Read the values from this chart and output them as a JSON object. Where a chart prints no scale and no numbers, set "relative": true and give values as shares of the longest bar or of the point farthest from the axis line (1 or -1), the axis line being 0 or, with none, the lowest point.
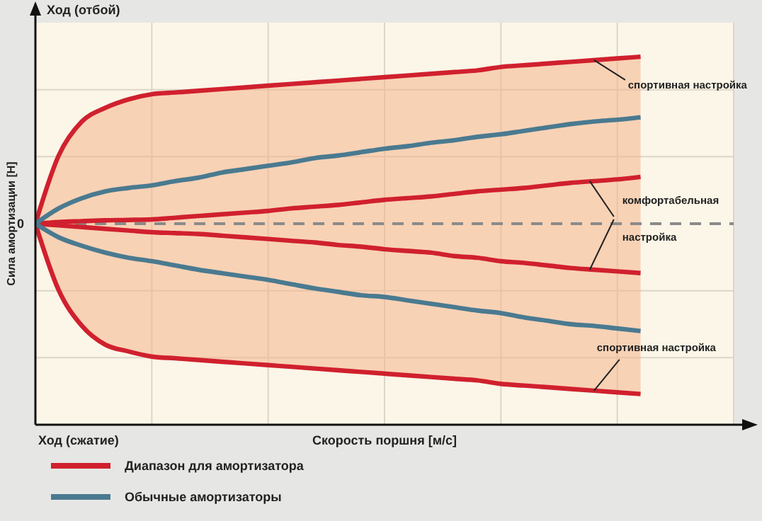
{
  "chart_data": {
    "type": "line",
    "relative": true,
    "ylabel": "Сила амортизации [Н]",
    "xlabel": "Скорость поршня [м/с]",
    "categories": [
      null,
      null,
      null,
      null,
      null,
      null,
      null,
      null,
      null,
      null,
      null,
      null,
      null,
      null,
      null,
      null,
      null,
      null,
      null,
      null,
      null,
      null,
      null,
      null,
      null,
      null,
      null
    ],
    "series": [
      {
        "name": "Диапазон для амортизатора",
        "color": "#d0202e",
        "values": [
          0,
          0.4,
          0.6,
          0.68,
          0.73,
          0.76,
          0.77,
          0.78,
          0.79,
          0.8,
          0.81,
          0.82,
          0.83,
          0.84,
          0.85,
          0.86,
          0.87,
          0.88,
          0.89,
          0.9,
          0.92,
          0.93,
          0.94,
          0.95,
          0.96,
          0.97,
          0.98
        ],
        "lower": [
          0,
          -0.39,
          -0.6,
          -0.71,
          -0.75,
          -0.78,
          -0.79,
          -0.8,
          -0.81,
          -0.82,
          -0.83,
          -0.84,
          -0.85,
          -0.86,
          -0.87,
          -0.88,
          -0.89,
          -0.9,
          -0.91,
          -0.92,
          -0.94,
          -0.95,
          -0.96,
          -0.97,
          -0.98,
          -0.99,
          -1.0
        ],
        "upper": [
          0,
          0.4,
          0.6,
          0.68,
          0.73,
          0.76,
          0.77,
          0.78,
          0.79,
          0.8,
          0.81,
          0.82,
          0.83,
          0.84,
          0.85,
          0.86,
          0.87,
          0.88,
          0.89,
          0.9,
          0.92,
          0.93,
          0.94,
          0.95,
          0.96,
          0.97,
          0.98
        ]
      },
      {
        "color": "#d0202e",
        "values": [
          0,
          0.01,
          0.015,
          0.02,
          0.022,
          0.025,
          0.035,
          0.045,
          0.055,
          0.065,
          0.075,
          0.09,
          0.1,
          0.11,
          0.125,
          0.14,
          0.15,
          0.16,
          0.175,
          0.19,
          0.2,
          0.21,
          0.225,
          0.24,
          0.25,
          0.26,
          0.275
        ]
      },
      {
        "color": "#d0202e",
        "values": [
          0,
          -0.01,
          -0.02,
          -0.03,
          -0.04,
          -0.05,
          -0.055,
          -0.06,
          -0.07,
          -0.08,
          -0.09,
          -0.1,
          -0.11,
          -0.125,
          -0.135,
          -0.15,
          -0.16,
          -0.17,
          -0.19,
          -0.2,
          -0.22,
          -0.23,
          -0.245,
          -0.26,
          -0.27,
          -0.28,
          -0.29
        ]
      },
      {
        "color": "#d0202e",
        "values": [
          0,
          -0.39,
          -0.6,
          -0.71,
          -0.75,
          -0.78,
          -0.79,
          -0.8,
          -0.81,
          -0.82,
          -0.83,
          -0.84,
          -0.85,
          -0.86,
          -0.87,
          -0.88,
          -0.89,
          -0.9,
          -0.91,
          -0.92,
          -0.94,
          -0.95,
          -0.96,
          -0.97,
          -0.98,
          -0.99,
          -1.0
        ]
      },
      {
        "name": "Обычные амортизаторы",
        "color": "#4a7a90",
        "values": [
          0,
          0.09,
          0.15,
          0.19,
          0.21,
          0.225,
          0.25,
          0.27,
          0.3,
          0.32,
          0.34,
          0.36,
          0.385,
          0.4,
          0.42,
          0.44,
          0.455,
          0.475,
          0.49,
          0.51,
          0.525,
          0.545,
          0.565,
          0.585,
          0.6,
          0.61,
          0.625
        ]
      },
      {
        "color": "#4a7a90",
        "values": [
          0,
          -0.08,
          -0.13,
          -0.17,
          -0.2,
          -0.22,
          -0.245,
          -0.27,
          -0.29,
          -0.31,
          -0.33,
          -0.355,
          -0.38,
          -0.4,
          -0.42,
          -0.43,
          -0.45,
          -0.47,
          -0.49,
          -0.51,
          -0.525,
          -0.55,
          -0.57,
          -0.59,
          -0.6,
          -0.615,
          -0.63
        ]
      }
    ],
    "ref_lines": [
      {
        "axis": "y",
        "value": 0,
        "label": "0",
        "color": "#8a8a8a",
        "line_style": "dashed"
      }
    ],
    "annotations": [
      "Ход (отбой)",
      "Ход (сжатие)",
      "спортивная настройка",
      "комфортабельная настройка",
      "спортивная настройка"
    ],
    "grid": true,
    "legend": "bottom"
  }
}
